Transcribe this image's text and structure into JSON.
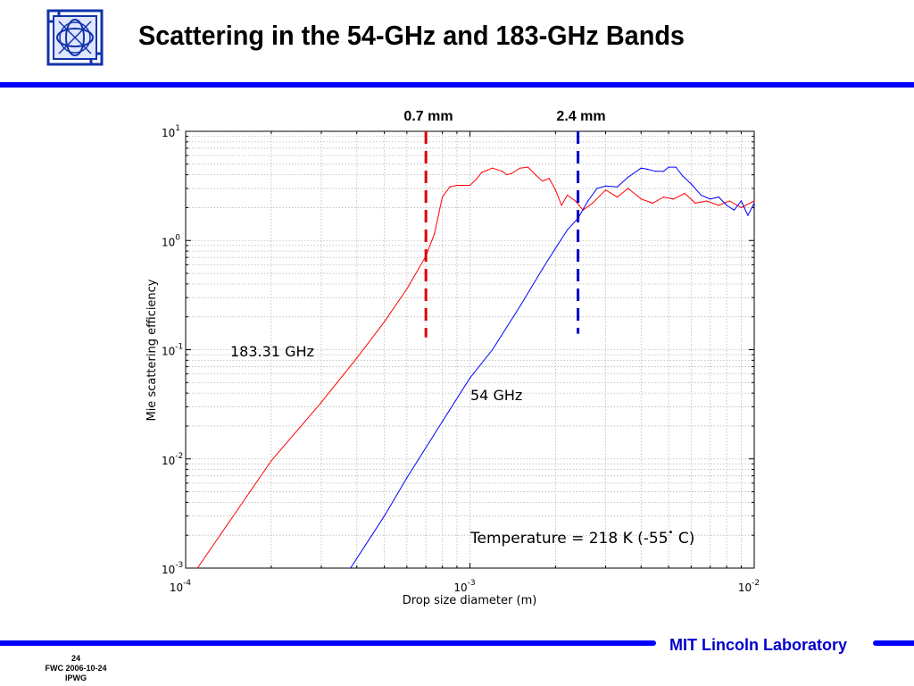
{
  "slide": {
    "title": "Scattering in the 54-GHz and 183-GHz Bands",
    "lab_name": "MIT Lincoln Laboratory",
    "page_number": "24",
    "footer_line1": "FWC 2006-10-24",
    "footer_line2": "IPWG",
    "logo_icon": "mit-lincoln-laboratory-logo-icon",
    "accent_color": "#0000ff"
  },
  "chart_data": {
    "type": "line",
    "xlabel": "Drop size diameter (m)",
    "ylabel": "Mie scattering efficiency",
    "x_scale": "log",
    "y_scale": "log",
    "xlim": [
      0.0001,
      0.01
    ],
    "ylim": [
      0.001,
      10
    ],
    "x_ticks": [
      {
        "value": 0.0001,
        "base": "10",
        "exp": "-4"
      },
      {
        "value": 0.001,
        "base": "10",
        "exp": "-3"
      },
      {
        "value": 0.01,
        "base": "10",
        "exp": "-2"
      }
    ],
    "y_ticks": [
      {
        "value": 10,
        "base": "10",
        "exp": "1"
      },
      {
        "value": 1,
        "base": "10",
        "exp": "0"
      },
      {
        "value": 0.1,
        "base": "10",
        "exp": "-1"
      },
      {
        "value": 0.01,
        "base": "10",
        "exp": "-2"
      },
      {
        "value": 0.001,
        "base": "10",
        "exp": "-3"
      }
    ],
    "grid": true,
    "series": [
      {
        "name": "183.31 GHz",
        "color": "#ff0000",
        "x": [
          0.00011,
          0.0002,
          0.0003,
          0.0004,
          0.0005,
          0.0006,
          0.0007,
          0.00075,
          0.0008,
          0.00085,
          0.0009,
          0.001,
          0.00105,
          0.0011,
          0.0012,
          0.0013,
          0.00135,
          0.0014,
          0.0015,
          0.0016,
          0.0017,
          0.0018,
          0.0019,
          0.002,
          0.0021,
          0.0022,
          0.00235,
          0.0025,
          0.0027,
          0.003,
          0.0033,
          0.0036,
          0.004,
          0.0044,
          0.0048,
          0.0052,
          0.0057,
          0.0062,
          0.0068,
          0.0075,
          0.0082,
          0.009,
          0.01
        ],
        "y": [
          0.001,
          0.0096,
          0.033,
          0.084,
          0.18,
          0.36,
          0.72,
          1.15,
          2.5,
          3.1,
          3.2,
          3.2,
          3.6,
          4.2,
          4.6,
          4.3,
          4.0,
          4.1,
          4.6,
          4.7,
          4.0,
          3.5,
          3.7,
          2.9,
          2.1,
          2.6,
          2.3,
          1.9,
          2.2,
          2.9,
          2.5,
          3.0,
          2.4,
          2.2,
          2.5,
          2.4,
          2.7,
          2.2,
          2.3,
          2.1,
          2.3,
          2.0,
          2.3
        ]
      },
      {
        "name": "54 GHz",
        "color": "#0000ff",
        "x": [
          0.00038,
          0.0005,
          0.0006,
          0.0008,
          0.001,
          0.0012,
          0.0015,
          0.0018,
          0.002,
          0.0022,
          0.0024,
          0.0026,
          0.0028,
          0.003,
          0.0033,
          0.0036,
          0.004,
          0.0042,
          0.0045,
          0.0048,
          0.005,
          0.0053,
          0.0056,
          0.006,
          0.0065,
          0.007,
          0.0075,
          0.008,
          0.0085,
          0.009,
          0.0095,
          0.01
        ],
        "y": [
          0.001,
          0.003,
          0.0067,
          0.022,
          0.055,
          0.1,
          0.25,
          0.55,
          0.85,
          1.25,
          1.6,
          2.3,
          3.0,
          3.15,
          3.1,
          3.8,
          4.6,
          4.5,
          4.3,
          4.3,
          4.7,
          4.7,
          3.9,
          3.3,
          2.6,
          2.4,
          2.5,
          2.1,
          1.9,
          2.3,
          1.7,
          2.2
        ]
      }
    ],
    "annotations": [
      {
        "id": "label_183",
        "text": "183.31 GHz"
      },
      {
        "id": "label_54",
        "text": "54 GHz"
      },
      {
        "id": "temperature",
        "text_before": "Temperature = 218 K (-55",
        "superscript": "•",
        "text_after": " C)"
      }
    ],
    "vlines": [
      {
        "x": 0.0007,
        "label": "0.7 mm",
        "color": "#dd0000",
        "y_range": [
          0.13,
          10
        ]
      },
      {
        "x": 0.0024,
        "label": "2.4 mm",
        "color": "#0000cc",
        "y_range": [
          0.14,
          10
        ]
      }
    ]
  }
}
